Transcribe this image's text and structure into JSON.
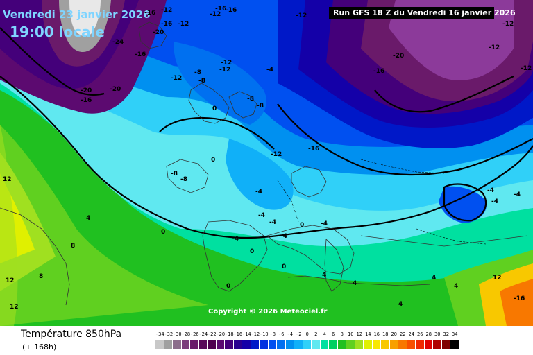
{
  "header": {
    "date_label": "Vendredi 23 janvier 2026",
    "time_label": "19:00 locale",
    "run_info": "Run GFS 18 Z du Vendredi 16 janvier 2026"
  },
  "copyright": "Copyright © 2026 Meteociel.fr",
  "legend": {
    "title": "Température 850hPa",
    "subtitle": "(+ 168h)",
    "scale_values": [
      "-34",
      "-32",
      "-30",
      "-28",
      "-26",
      "-24",
      "-22",
      "-20",
      "-18",
      "-16",
      "-14",
      "-12",
      "-10",
      "-8",
      "-6",
      "-4",
      "-2",
      "0",
      "2",
      "4",
      "6",
      "8",
      "10",
      "12",
      "14",
      "16",
      "18",
      "20",
      "22",
      "24",
      "26",
      "28",
      "30",
      "32",
      "34"
    ],
    "scale_colors": [
      "#c8c8c8",
      "#a0a0a0",
      "#8c6e8c",
      "#7a3d7a",
      "#6a1a6a",
      "#5a0a5a",
      "#500050",
      "#5c0a70",
      "#44007a",
      "#2a0090",
      "#1400a8",
      "#0018c8",
      "#0030e0",
      "#0050f0",
      "#0070f0",
      "#0090f0",
      "#10b0f8",
      "#30d0f8",
      "#60e8f0",
      "#00e0a0",
      "#00d060",
      "#20c020",
      "#60d020",
      "#a0e020",
      "#e0f000",
      "#f8e800",
      "#f8c800",
      "#f8a000",
      "#f87800",
      "#f85000",
      "#f02800",
      "#e00000",
      "#b00000",
      "#800000",
      "#000000"
    ]
  },
  "labels": [
    "-12",
    "-16",
    "-12",
    "-16",
    "-16",
    "-20",
    "-24",
    "-16",
    "-16",
    "-12",
    "-20",
    "-20",
    "-16",
    "-12",
    "-8",
    "-8",
    "-12",
    "-12",
    "-20",
    "-16",
    "-12",
    "-12",
    "-4",
    "-8",
    "-8",
    "0",
    "-12",
    "-16",
    "0",
    "-8",
    "-8",
    "-4",
    "-4",
    "-4",
    "0",
    "-4",
    "-4",
    "-4",
    "0",
    "0",
    "0",
    "0",
    "4",
    "4",
    "4",
    "4",
    "8",
    "8",
    "12",
    "12",
    "12",
    "-12",
    "-12",
    "-4",
    "-4",
    "-4",
    "4",
    "4",
    "-16",
    "12"
  ]
}
